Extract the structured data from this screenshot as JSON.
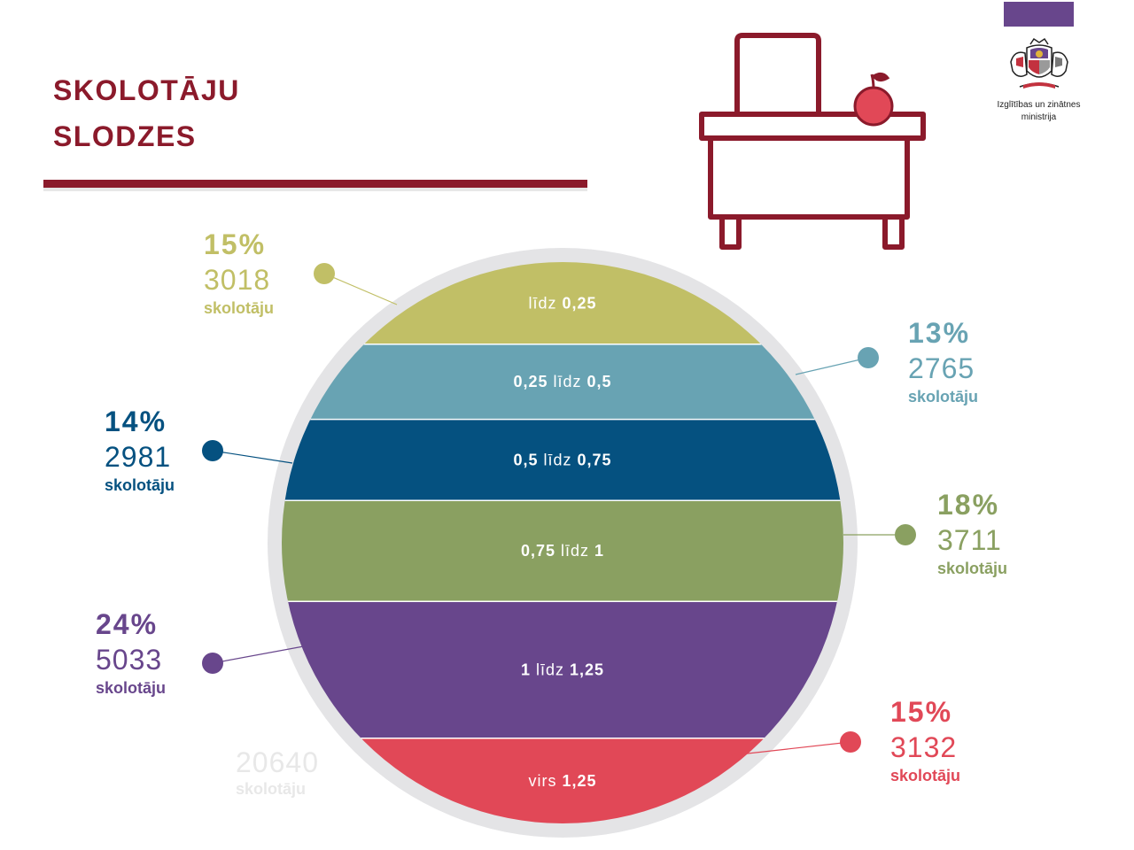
{
  "header": {
    "title_line1": "SKOLOTĀJU",
    "title_line2": "SLODZES"
  },
  "ministry": {
    "name_line1": "Izglītības un zinātnes",
    "name_line2": "ministrija",
    "logo_icon": "coat-of-arms-icon"
  },
  "decor": {
    "icon": "teacher-desk-with-apple-icon"
  },
  "colors": {
    "title": "#8b1a2b",
    "ring": "#e4e4e6",
    "band1": "#c1bf66",
    "band2": "#68a3b3",
    "band3": "#055180",
    "band4": "#8aa061",
    "band5": "#68468c",
    "band6": "#e14857"
  },
  "total": {
    "count": "20640",
    "unit": "skolotāju"
  },
  "chart_data": {
    "type": "table",
    "categories": [
      {
        "pre": "",
        "b1": "",
        "mid": "līdz ",
        "b2": "0,25"
      },
      {
        "pre": "",
        "b1": "0,25",
        "mid": " līdz ",
        "b2": "0,5"
      },
      {
        "pre": "",
        "b1": "0,5",
        "mid": " līdz ",
        "b2": "0,75"
      },
      {
        "pre": "",
        "b1": "0,75",
        "mid": " līdz ",
        "b2": "1"
      },
      {
        "pre": "",
        "b1": "1",
        "mid": " līdz ",
        "b2": "1,25"
      },
      {
        "pre": "",
        "b1": "",
        "mid": "virs ",
        "b2": "1,25"
      }
    ],
    "values": [
      3018,
      2765,
      2981,
      3711,
      5033,
      3132
    ],
    "percent_labels": [
      "15%",
      "13%",
      "14%",
      "18%",
      "24%",
      "15%"
    ],
    "count_labels": [
      "3018",
      "2765",
      "2981",
      "3711",
      "5033",
      "3132"
    ],
    "unit_label": "skolotāju",
    "total": 20640
  }
}
